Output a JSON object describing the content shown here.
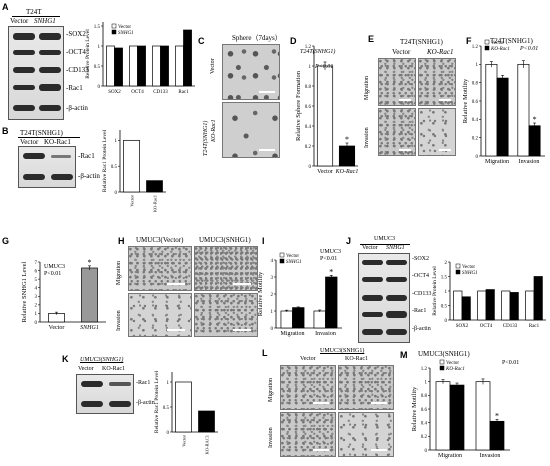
{
  "panels": {
    "A": {
      "label": "A",
      "cell_title": "T24T",
      "lanes": [
        "Vector",
        "SNHG1"
      ],
      "blot_labels": [
        "SOX2",
        "OCT4",
        "CD133",
        "Rac1",
        "β-actin"
      ],
      "ylabel": "Relative Protein Level",
      "legend": [
        "Vector",
        "SNHG1"
      ],
      "yticks": [
        "0",
        "0.5",
        "1",
        "1.5"
      ]
    },
    "B": {
      "label": "B",
      "cell_title": "T24T(SNHG1)",
      "lanes": [
        "Vector",
        "KO-Rac1"
      ],
      "blot_labels": [
        "Rac1",
        "β-actin"
      ],
      "ylabel": "Relative Rac1 Protein Level",
      "yticks": [
        "0",
        "0.5",
        "1"
      ]
    },
    "C": {
      "label": "C",
      "title": "Sphere（7days）",
      "row_labels": [
        "Vector",
        "T24T(SNHG1)",
        "KO-Rac1"
      ]
    },
    "D": {
      "label": "D",
      "title": "T24T(SNHG1)",
      "pvalue": "P<0.01",
      "ylabel": "Relative Sphere Formation",
      "yticks": [
        "0",
        "0.2",
        "0.4",
        "0.6",
        "0.8",
        "1",
        "1.2"
      ],
      "star": "*"
    },
    "E": {
      "label": "E",
      "title": "T24T(SNHG1)",
      "cols": [
        "Vector",
        "KO-Rac1"
      ],
      "rows": [
        "Migration",
        "Invasion"
      ]
    },
    "F": {
      "label": "F",
      "title": "T24T(SNHG1)",
      "legend": [
        "Vector",
        "KO-Rac1"
      ],
      "pvalue": "P<0.01",
      "ylabel": "Relative Motility",
      "yticks": [
        "0",
        "0.2",
        "0.4",
        "0.6",
        "0.8",
        "1",
        "1.2"
      ],
      "star": "*"
    },
    "G": {
      "label": "G",
      "title": "UMUC3",
      "pvalue": "P<0.01",
      "ylabel": "Relative SNHG1 Level",
      "yticks": [
        "0",
        "1",
        "2",
        "3",
        "4",
        "5",
        "6",
        "7"
      ],
      "star": "*"
    },
    "H": {
      "label": "H",
      "cols": [
        "UMUC3(Vector)",
        "UMUC3(SNHG1)"
      ],
      "rows": [
        "Migration",
        "Invasion"
      ]
    },
    "I": {
      "label": "I",
      "legend": [
        "Vector",
        "SNHG1"
      ],
      "annot": [
        "UMUC3",
        "P<0.01"
      ],
      "ylabel": "Relative Motility",
      "yticks": [
        "0",
        "1",
        "2",
        "3",
        "4"
      ],
      "star": "*"
    },
    "J": {
      "label": "J",
      "cell_title": "UMUC3",
      "lanes": [
        "Vector",
        "SNHG1"
      ],
      "blot_labels": [
        "SOX2",
        "OCT4",
        "CD133",
        "Rac1",
        "β-actin"
      ],
      "ylabel": "Relative Protein Level",
      "legend": [
        "Vector",
        "SNHG1"
      ],
      "yticks": [
        "0",
        "0.5",
        "1",
        "1.5",
        "2"
      ]
    },
    "K": {
      "label": "K",
      "cell_title": "UMUC3(SNHG1)",
      "lanes": [
        "Vector",
        "KO-Rac1"
      ],
      "blot_labels": [
        "Rac1",
        "β-actin"
      ],
      "ylabel": "Relative Rac1 Protein Level",
      "yticks": [
        "0",
        "0.5",
        "1"
      ]
    },
    "L": {
      "label": "L",
      "title": "UMUC3(SNHG1)",
      "cols": [
        "Vector",
        "KO-Rac1"
      ],
      "rows": [
        "Migration",
        "Invasion"
      ]
    },
    "M": {
      "label": "M",
      "title": "UMUC3(SNHG1)",
      "legend": [
        "Vector",
        "KO-Rac1"
      ],
      "pvalue": "P<0.01",
      "ylabel": "Relative Motility",
      "yticks": [
        "0",
        "0.2",
        "0.4",
        "0.6",
        "0.8",
        "1",
        "1.2"
      ],
      "star": "*"
    }
  },
  "chart_data": [
    {
      "id": "A",
      "type": "bar",
      "categories": [
        "SOX2",
        "OCT4",
        "CD133",
        "Rac1"
      ],
      "series": [
        {
          "name": "Vector",
          "values": [
            1,
            1,
            1,
            1
          ]
        },
        {
          "name": "SNHG1",
          "values": [
            0.95,
            1.0,
            1.0,
            1.4
          ]
        }
      ],
      "ylabel": "Relative Protein Level",
      "ylim": [
        0,
        1.6
      ]
    },
    {
      "id": "B",
      "type": "bar",
      "categories": [
        "Vector",
        "KO-Rac1"
      ],
      "values": [
        1.0,
        0.22
      ],
      "ylabel": "Relative Rac1 Protein Level",
      "ylim": [
        0,
        1.2
      ]
    },
    {
      "id": "D",
      "type": "bar",
      "categories": [
        "Vector",
        "KO-Rac1"
      ],
      "values": [
        1.0,
        0.2
      ],
      "errors": [
        0.04,
        0.03
      ],
      "ylabel": "Relative Sphere Formation",
      "ylim": [
        0,
        1.2
      ]
    },
    {
      "id": "F",
      "type": "bar",
      "categories": [
        "Migration",
        "Invasion"
      ],
      "series": [
        {
          "name": "Vector",
          "values": [
            1.0,
            1.0
          ]
        },
        {
          "name": "KO-Rac1",
          "values": [
            0.85,
            0.33
          ]
        }
      ],
      "errors": [
        [
          0.03,
          0.03
        ],
        [
          0.04,
          0.03
        ]
      ],
      "ylabel": "Relative Motility",
      "ylim": [
        0,
        1.2
      ]
    },
    {
      "id": "G",
      "type": "bar",
      "categories": [
        "Vector",
        "SNHG1"
      ],
      "values": [
        1.0,
        6.3
      ],
      "errors": [
        0.15,
        0.25
      ],
      "ylabel": "Relative SNHG1 Level",
      "ylim": [
        0,
        7
      ]
    },
    {
      "id": "I",
      "type": "bar",
      "categories": [
        "Migration",
        "Invasion"
      ],
      "series": [
        {
          "name": "Vector",
          "values": [
            1.0,
            1.0
          ]
        },
        {
          "name": "SNHG1",
          "values": [
            1.2,
            3.0
          ]
        }
      ],
      "errors": [
        [
          0.05,
          0.04
        ],
        [
          0.06,
          0.1
        ]
      ],
      "ylabel": "Relative Motility",
      "ylim": [
        0,
        4
      ]
    },
    {
      "id": "J",
      "type": "bar",
      "categories": [
        "SOX2",
        "OCT4",
        "CD133",
        "Rac1"
      ],
      "series": [
        {
          "name": "Vector",
          "values": [
            1,
            1,
            1,
            1
          ]
        },
        {
          "name": "SNHG1",
          "values": [
            0.8,
            1.05,
            0.95,
            1.5
          ]
        }
      ],
      "ylabel": "Relative Protein Level",
      "ylim": [
        0,
        2
      ]
    },
    {
      "id": "K",
      "type": "bar",
      "categories": [
        "Vector",
        "KO-RAC1"
      ],
      "values": [
        1.0,
        0.42
      ],
      "ylabel": "Relative Rac1 Protein Level",
      "ylim": [
        0,
        1.2
      ]
    },
    {
      "id": "M",
      "type": "bar",
      "categories": [
        "Migration",
        "Invasion"
      ],
      "series": [
        {
          "name": "Vector",
          "values": [
            1.0,
            1.0
          ]
        },
        {
          "name": "KO-Rac1",
          "values": [
            0.95,
            0.42
          ]
        }
      ],
      "errors": [
        [
          0.03,
          0.03
        ],
        [
          0.04,
          0.03
        ]
      ],
      "ylabel": "Relative Motility",
      "ylim": [
        0,
        1.2
      ]
    }
  ]
}
